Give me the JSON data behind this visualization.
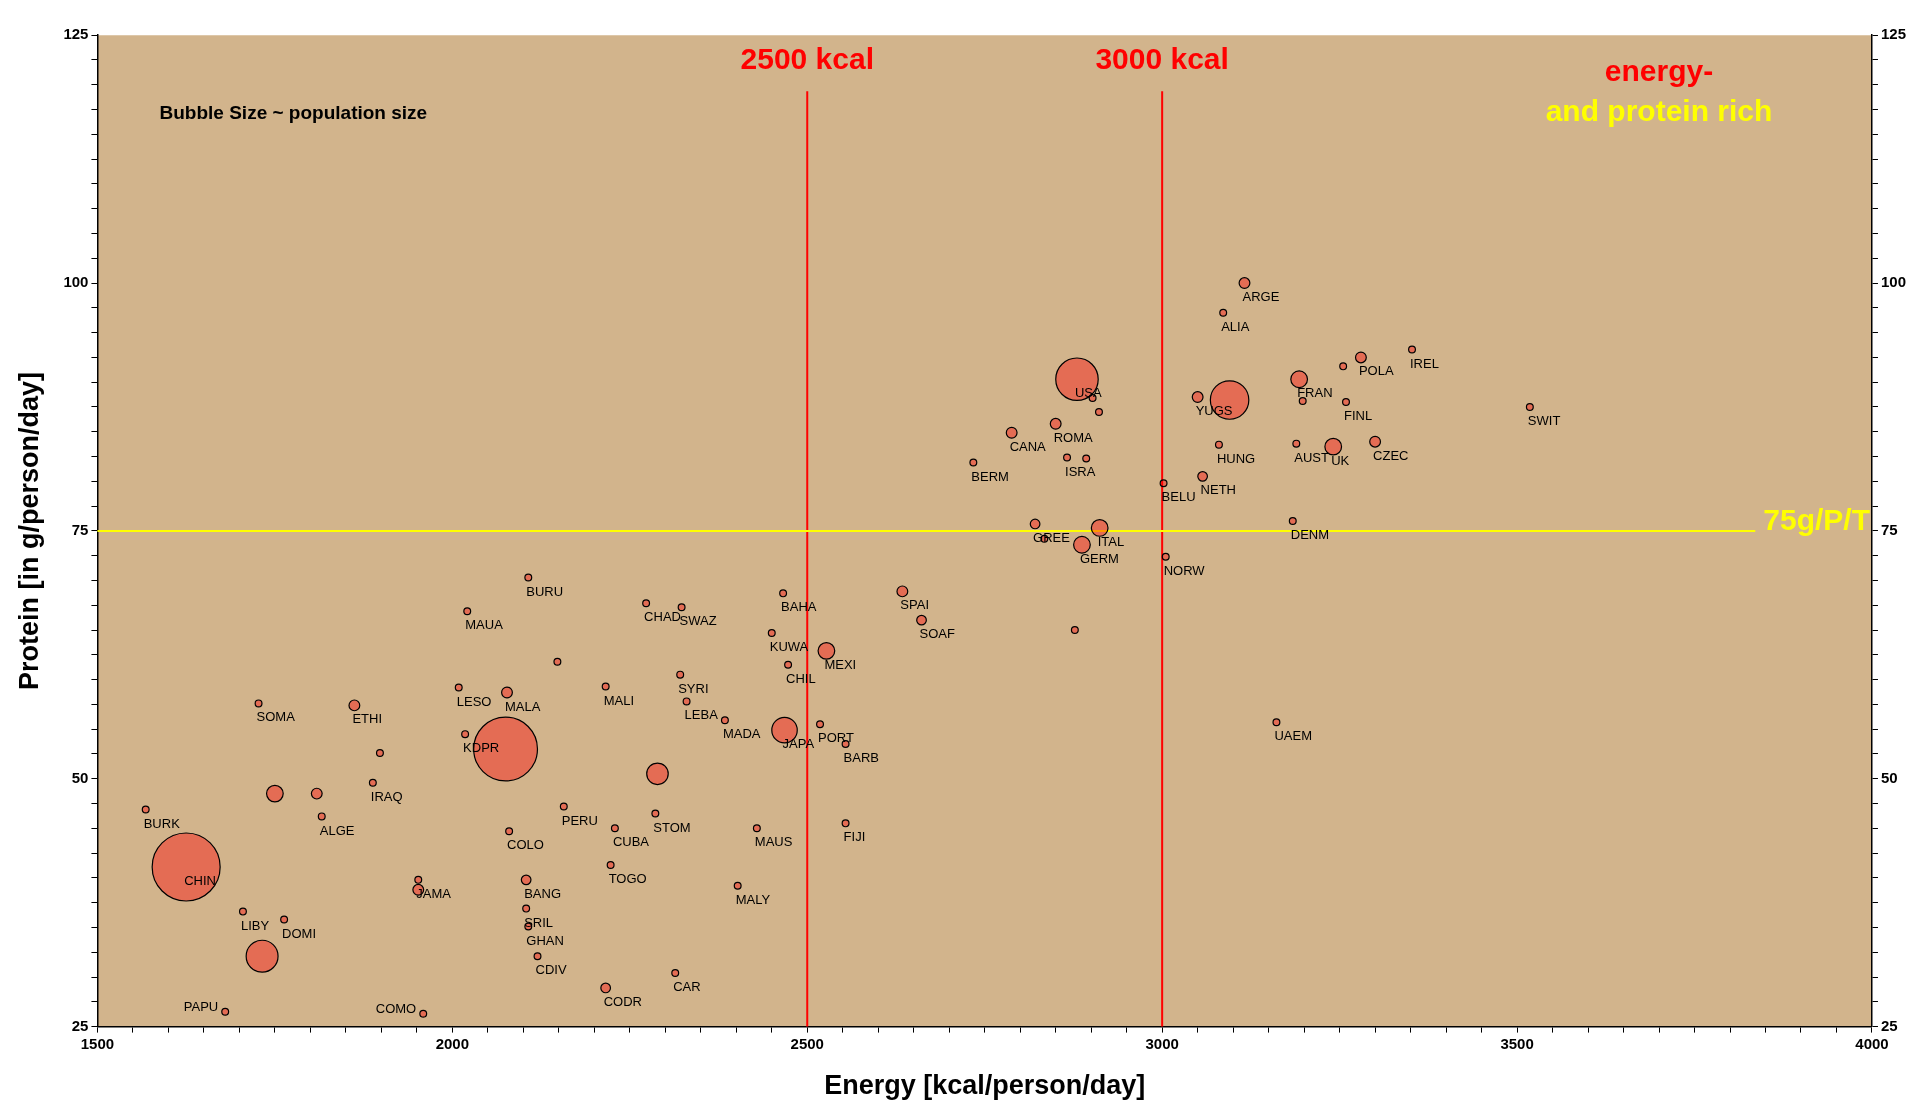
{
  "chart_data": {
    "type": "bubble",
    "xlabel": "Energy [kcal/person/day]",
    "ylabel": "Protein [in g/person/day]",
    "color": "#ff0000",
    "grid": false,
    "legend": false,
    "x": [
      3116,
      3086,
      2880,
      3095,
      3050,
      3193,
      3198,
      3255,
      3280,
      3352,
      3259,
      3518,
      3300,
      3189,
      3241,
      3080,
      3057,
      3002,
      3184,
      3005,
      2866,
      2893,
      2788,
      2734,
      2850,
      2902,
      2911,
      2821,
      2912,
      2834,
      2887,
      3161,
      2877,
      2634,
      2661,
      2466,
      2450,
      2527,
      2473,
      2468,
      2518,
      2554,
      2554,
      2429,
      2402,
      2314,
      2216,
      2120,
      2223,
      2286,
      2229,
      2080,
      2157,
      2104,
      2104,
      2107,
      2330,
      2321,
      2384,
      2273,
      2323,
      2107,
      2021,
      2009,
      2077,
      2148,
      2216,
      2018,
      1862,
      1727,
      1898,
      1888,
      1816,
      1568,
      1625,
      1680,
      1959,
      1705,
      1952,
      1952,
      2075,
      1732,
      2289,
      1763,
      1750,
      1809
    ],
    "values": [
      100.0,
      97.0,
      90.3,
      88.2,
      88.5,
      90.3,
      88.1,
      91.6,
      92.5,
      93.3,
      88.0,
      87.5,
      84.0,
      83.8,
      83.5,
      83.7,
      80.5,
      79.8,
      76.0,
      72.4,
      82.4,
      82.3,
      84.9,
      81.9,
      85.8,
      88.4,
      87.0,
      75.7,
      75.3,
      74.2,
      73.6,
      55.7,
      65.0,
      68.9,
      66.0,
      68.7,
      64.7,
      62.9,
      61.5,
      54.9,
      55.5,
      53.5,
      45.5,
      45.0,
      39.2,
      30.4,
      28.9,
      32.1,
      41.3,
      46.5,
      45.0,
      44.7,
      47.2,
      39.8,
      36.9,
      35.1,
      57.8,
      60.5,
      55.9,
      67.7,
      67.3,
      70.3,
      66.9,
      59.2,
      58.7,
      61.8,
      59.3,
      54.5,
      57.4,
      57.6,
      52.6,
      49.6,
      46.2,
      46.9,
      41.1,
      26.5,
      26.3,
      36.6,
      39.8,
      38.8,
      53.0,
      32.1,
      50.5,
      35.8,
      48.5,
      48.5
    ],
    "sizes": [
      0.025,
      0.01,
      0.39,
      0.32,
      0.025,
      0.06,
      0.01,
      0.01,
      0.025,
      0.01,
      0.01,
      0.01,
      0.025,
      0.01,
      0.06,
      0.01,
      0.02,
      0.01,
      0.01,
      0.01,
      0.01,
      0.01,
      0.025,
      0.01,
      0.025,
      0.01,
      0.01,
      0.02,
      0.06,
      0.01,
      0.06,
      0.01,
      0.01,
      0.025,
      0.02,
      0.01,
      0.01,
      0.06,
      0.01,
      0.14,
      0.01,
      0.01,
      0.01,
      0.01,
      0.01,
      0.01,
      0.02,
      0.01,
      0.01,
      0.01,
      0.01,
      0.01,
      0.01,
      0.02,
      0.01,
      0.01,
      0.01,
      0.01,
      0.01,
      0.01,
      0.01,
      0.01,
      0.01,
      0.01,
      0.025,
      0.01,
      0.01,
      0.01,
      0.025,
      0.01,
      0.01,
      0.01,
      0.01,
      0.01,
      1,
      0.01,
      0.01,
      0.01,
      0.01,
      0.025,
      0.88,
      0.22,
      0.1,
      0.01,
      0.06,
      0.025
    ],
    "xlim": [
      1500,
      4000
    ],
    "xticks": [
      1500,
      {
        "value": 1550,
        "label": null
      },
      {
        "value": 1600,
        "label": null
      },
      {
        "value": 1650,
        "label": null
      },
      {
        "value": 1700,
        "label": null
      },
      {
        "value": 1750,
        "label": null
      },
      {
        "value": 1800,
        "label": null
      },
      {
        "value": 1850,
        "label": null
      },
      {
        "value": 1900,
        "label": null
      },
      {
        "value": 1950,
        "label": null
      },
      2000,
      {
        "value": 2050,
        "label": null
      },
      {
        "value": 2100,
        "label": null
      },
      {
        "value": 2150,
        "label": null
      },
      {
        "value": 2200,
        "label": null
      },
      {
        "value": 2250,
        "label": null
      },
      {
        "value": 2300,
        "label": null
      },
      {
        "value": 2350,
        "label": null
      },
      {
        "value": 2400,
        "label": null
      },
      {
        "value": 2450,
        "label": null
      },
      2500,
      {
        "value": 2550,
        "label": null
      },
      {
        "value": 2600,
        "label": null
      },
      {
        "value": 2650,
        "label": null
      },
      {
        "value": 2700,
        "label": null
      },
      {
        "value": 2750,
        "label": null
      },
      {
        "value": 2800,
        "label": null
      },
      {
        "value": 2850,
        "label": null
      },
      {
        "value": 2900,
        "label": null
      },
      {
        "value": 2950,
        "label": null
      },
      3000,
      {
        "value": 3050,
        "label": null
      },
      {
        "value": 3100,
        "label": null
      },
      {
        "value": 3150,
        "label": null
      },
      {
        "value": 3200,
        "label": null
      },
      {
        "value": 3250,
        "label": null
      },
      {
        "value": 3300,
        "label": null
      },
      {
        "value": 3350,
        "label": null
      },
      {
        "value": 3400,
        "label": null
      },
      {
        "value": 3450,
        "label": null
      },
      3500,
      {
        "value": 3550,
        "label": null
      },
      {
        "value": 3600,
        "label": null
      },
      {
        "value": 3650,
        "label": null
      },
      {
        "value": 3700,
        "label": null
      },
      {
        "value": 3750,
        "label": null
      },
      {
        "value": 3800,
        "label": null
      },
      {
        "value": 3850,
        "label": null
      },
      {
        "value": 3900,
        "label": null
      },
      {
        "value": 3950,
        "label": null
      },
      4000
    ],
    "ylim": [
      25,
      125
    ],
    "yticks": [
      25,
      {
        "value": 27.5,
        "label": null
      },
      {
        "value": 30,
        "label": null
      },
      {
        "value": 32.5,
        "label": null
      },
      {
        "value": 35,
        "label": null
      },
      {
        "value": 37.5,
        "label": null
      },
      {
        "value": 40,
        "label": null
      },
      {
        "value": 42.5,
        "label": null
      },
      {
        "value": 45,
        "label": null
      },
      {
        "value": 47.5,
        "label": null
      },
      50,
      {
        "value": 52.5,
        "label": null
      },
      {
        "value": 55,
        "label": null
      },
      {
        "value": 57.5,
        "label": null
      },
      {
        "value": 60,
        "label": null
      },
      {
        "value": 62.5,
        "label": null
      },
      {
        "value": 65,
        "label": null
      },
      {
        "value": 67.5,
        "label": null
      },
      {
        "value": 70,
        "label": null
      },
      {
        "value": 72.5,
        "label": null
      },
      75,
      {
        "value": 77.5,
        "label": null
      },
      {
        "value": 80,
        "label": null
      },
      {
        "value": 82.5,
        "label": null
      },
      {
        "value": 85,
        "label": null
      },
      {
        "value": 87.5,
        "label": null
      },
      {
        "value": 90,
        "label": null
      },
      {
        "value": 92.5,
        "label": null
      },
      {
        "value": 95,
        "label": null
      },
      {
        "value": 97.5,
        "label": null
      },
      100,
      {
        "value": 102.5,
        "label": null
      },
      {
        "value": 105,
        "label": null
      },
      {
        "value": 107.5,
        "label": null
      },
      {
        "value": 110,
        "label": null
      },
      {
        "value": 112.5,
        "label": null
      },
      {
        "value": 115,
        "label": null
      },
      {
        "value": 117.5,
        "label": null
      },
      {
        "value": 120,
        "label": null
      },
      {
        "value": 122.5,
        "label": null
      },
      125
    ],
    "y2lim": [
      25,
      125
    ],
    "y2ticks": [
      25,
      {
        "value": 27.5,
        "label": null
      },
      {
        "value": 30,
        "label": null
      },
      {
        "value": 32.5,
        "label": null
      },
      {
        "value": 35,
        "label": null
      },
      {
        "value": 37.5,
        "label": null
      },
      {
        "value": 40,
        "label": null
      },
      {
        "value": 42.5,
        "label": null
      },
      {
        "value": 45,
        "label": null
      },
      {
        "value": 47.5,
        "label": null
      },
      50,
      {
        "value": 52.5,
        "label": null
      },
      {
        "value": 55,
        "label": null
      },
      {
        "value": 57.5,
        "label": null
      },
      {
        "value": 60,
        "label": null
      },
      {
        "value": 62.5,
        "label": null
      },
      {
        "value": 65,
        "label": null
      },
      {
        "value": 67.5,
        "label": null
      },
      {
        "value": 70,
        "label": null
      },
      {
        "value": 72.5,
        "label": null
      },
      75,
      {
        "value": 77.5,
        "label": null
      },
      {
        "value": 80,
        "label": null
      },
      {
        "value": 82.5,
        "label": null
      },
      {
        "value": 85,
        "label": null
      },
      {
        "value": 87.5,
        "label": null
      },
      {
        "value": 90,
        "label": null
      },
      {
        "value": 92.5,
        "label": null
      },
      {
        "value": 95,
        "label": null
      },
      {
        "value": 97.5,
        "label": null
      },
      100,
      {
        "value": 102.5,
        "label": null
      },
      {
        "value": 105,
        "label": null
      },
      {
        "value": 107.5,
        "label": null
      },
      {
        "value": 110,
        "label": null
      },
      {
        "value": 112.5,
        "label": null
      },
      {
        "value": 115,
        "label": null
      },
      {
        "value": 117.5,
        "label": null
      },
      {
        "value": 120,
        "label": null
      },
      {
        "value": 122.5,
        "label": null
      },
      125
    ],
    "ref_lines": [
      {
        "axis": "x",
        "value": 2500,
        "label": "2500 kcal",
        "color": "#ff0000"
      },
      {
        "axis": "x",
        "value": 3000,
        "label": "3000 kcal",
        "color": "#ff0000"
      },
      {
        "axis": "y",
        "value": 75,
        "label": "75g/P/T",
        "color": "#ffff00"
      }
    ],
    "annotations": [
      "Bubble Size ~ population size",
      "energy-",
      "and protein rich",
      {
        "text": "ARGE",
        "x": 3116,
        "y": 100.0
      },
      {
        "text": "ALIA",
        "x": 3086,
        "y": 97.0
      },
      {
        "text": "USA",
        "x": 2880,
        "y": 90.3
      },
      {
        "text": "YUGS",
        "x": 3050,
        "y": 88.5
      },
      {
        "text": "FRAN",
        "x": 3193,
        "y": 90.3
      },
      {
        "text": "POLA",
        "x": 3280,
        "y": 92.5
      },
      {
        "text": "IREL",
        "x": 3352,
        "y": 93.3
      },
      {
        "text": "FINL",
        "x": 3259,
        "y": 88.0
      },
      {
        "text": "SWIT",
        "x": 3518,
        "y": 87.5
      },
      {
        "text": "CZEC",
        "x": 3300,
        "y": 84.0
      },
      {
        "text": "AUST",
        "x": 3189,
        "y": 83.8
      },
      {
        "text": "UK",
        "x": 3241,
        "y": 83.5
      },
      {
        "text": "HUNG",
        "x": 3080,
        "y": 83.7
      },
      {
        "text": "NETH",
        "x": 3057,
        "y": 80.5
      },
      {
        "text": "BELU",
        "x": 3002,
        "y": 79.8
      },
      {
        "text": "DENM",
        "x": 3184,
        "y": 76.0
      },
      {
        "text": "NORW",
        "x": 3005,
        "y": 72.4
      },
      {
        "text": "ISRA",
        "x": 2866,
        "y": 82.4
      },
      {
        "text": "CANA",
        "x": 2788,
        "y": 84.9
      },
      {
        "text": "BERM",
        "x": 2734,
        "y": 81.9
      },
      {
        "text": "ROMA",
        "x": 2850,
        "y": 85.8
      },
      {
        "text": "GREE",
        "x": 2821,
        "y": 75.7
      },
      {
        "text": "ITAL",
        "x": 2912,
        "y": 75.3
      },
      {
        "text": "GERM",
        "x": 2887,
        "y": 73.6
      },
      {
        "text": "UAEM",
        "x": 3161,
        "y": 55.7
      },
      {
        "text": "SPAI",
        "x": 2634,
        "y": 68.9
      },
      {
        "text": "SOAF",
        "x": 2661,
        "y": 66.0
      },
      {
        "text": "BAHA",
        "x": 2466,
        "y": 68.7
      },
      {
        "text": "KUWA",
        "x": 2450,
        "y": 64.7
      },
      {
        "text": "MEXI",
        "x": 2527,
        "y": 62.9
      },
      {
        "text": "CHIL",
        "x": 2473,
        "y": 61.5
      },
      {
        "text": "JAPA",
        "x": 2468,
        "y": 54.9
      },
      {
        "text": "PORT",
        "x": 2518,
        "y": 55.5
      },
      {
        "text": "BARB",
        "x": 2554,
        "y": 53.5
      },
      {
        "text": "FIJI",
        "x": 2554,
        "y": 45.5
      },
      {
        "text": "MAUS",
        "x": 2429,
        "y": 45.0
      },
      {
        "text": "MALY",
        "x": 2402,
        "y": 39.2
      },
      {
        "text": "CAR",
        "x": 2314,
        "y": 30.4
      },
      {
        "text": "CODR",
        "x": 2216,
        "y": 28.9
      },
      {
        "text": "CDIV",
        "x": 2120,
        "y": 32.1
      },
      {
        "text": "TOGO",
        "x": 2223,
        "y": 41.3
      },
      {
        "text": "STOM",
        "x": 2286,
        "y": 46.5
      },
      {
        "text": "CUBA",
        "x": 2229,
        "y": 45.0
      },
      {
        "text": "COLO",
        "x": 2080,
        "y": 44.7
      },
      {
        "text": "PERU",
        "x": 2157,
        "y": 47.2
      },
      {
        "text": "BANG",
        "x": 2104,
        "y": 39.8
      },
      {
        "text": "SRIL",
        "x": 2104,
        "y": 36.9
      },
      {
        "text": "GHAN",
        "x": 2107,
        "y": 35.1
      },
      {
        "text": "LEBA",
        "x": 2330,
        "y": 57.8
      },
      {
        "text": "SYRI",
        "x": 2321,
        "y": 60.5
      },
      {
        "text": "MADA",
        "x": 2384,
        "y": 55.9
      },
      {
        "text": "CHAD",
        "x": 2273,
        "y": 67.7
      },
      {
        "text": "SWAZ",
        "x": 2323,
        "y": 67.3
      },
      {
        "text": "BURU",
        "x": 2107,
        "y": 70.3
      },
      {
        "text": "MAUA",
        "x": 2021,
        "y": 66.9
      },
      {
        "text": "LESO",
        "x": 2009,
        "y": 59.2
      },
      {
        "text": "MALA",
        "x": 2077,
        "y": 58.7
      },
      {
        "text": "MALI",
        "x": 2216,
        "y": 59.3
      },
      {
        "text": "KDPR",
        "x": 2018,
        "y": 54.5
      },
      {
        "text": "ETHI",
        "x": 1862,
        "y": 57.4
      },
      {
        "text": "SOMA",
        "x": 1727,
        "y": 57.6
      },
      {
        "text": "IRAQ",
        "x": 1888,
        "y": 49.6
      },
      {
        "text": "ALGE",
        "x": 1816,
        "y": 46.2
      },
      {
        "text": "BURK",
        "x": 1568,
        "y": 46.9
      },
      {
        "text": "CHIN",
        "x": 1625,
        "y": 41.1
      },
      {
        "text": "PAPU",
        "x": 1680,
        "y": 26.5
      },
      {
        "text": "COMO",
        "x": 1959,
        "y": 26.3
      },
      {
        "text": "LIBY",
        "x": 1705,
        "y": 36.6
      },
      {
        "text": "JAMA",
        "x": 1952,
        "y": 39.8
      },
      {
        "text": "DOMI",
        "x": 1763,
        "y": 35.8
      }
    ]
  }
}
